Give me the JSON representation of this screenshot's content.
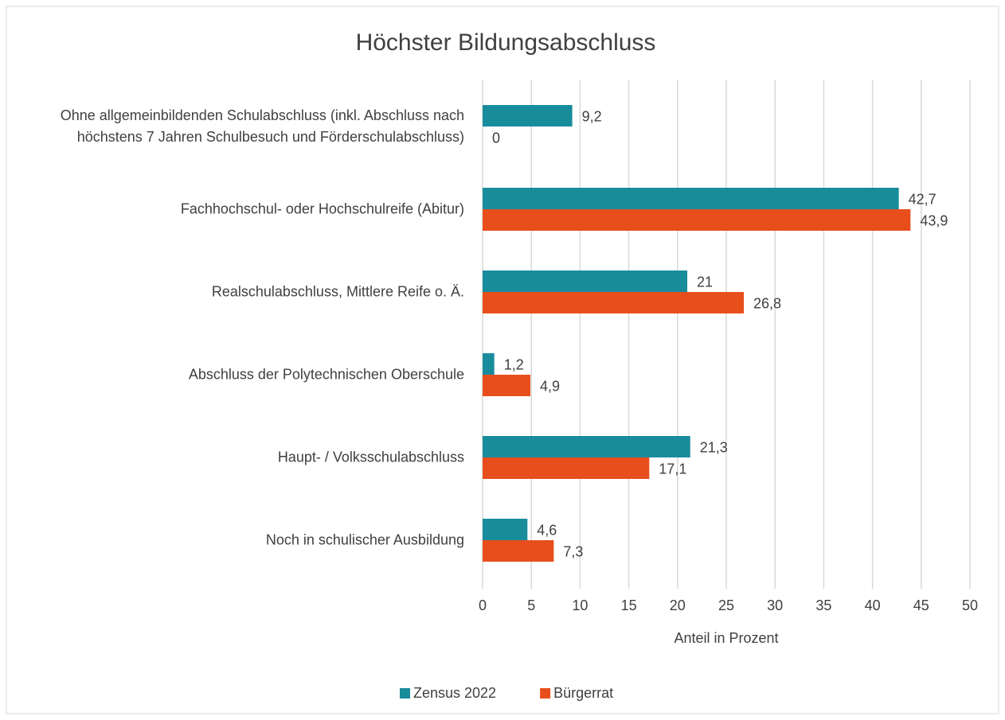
{
  "chart_data": {
    "type": "bar",
    "orientation": "horizontal",
    "title": "Höchster Bildungsabschluss",
    "x_label": "Anteil in Prozent",
    "categories": [
      "Ohne allgemeinbildenden Schulabschluss (inkl. Abschluss nach höchstens 7 Jahren Schulbesuch und Förderschulabschluss)",
      "Fachhochschul- oder Hochschulreife (Abitur)",
      "Realschulabschluss, Mittlere Reife o. Ä.",
      "Abschluss der Polytechnischen Oberschule",
      "Haupt- / Volksschulabschluss",
      "Noch in schulischer Ausbildung"
    ],
    "series": [
      {
        "name": "Zensus 2022",
        "color": "#198c9c",
        "values": [
          9.2,
          42.7,
          21,
          1.2,
          21.3,
          4.6
        ],
        "value_labels": [
          "9,2",
          "42,7",
          "21",
          "1,2",
          "21,3",
          "4,6"
        ]
      },
      {
        "name": "Bürgerrat",
        "color": "#e84e1b",
        "values": [
          0,
          43.9,
          26.8,
          4.9,
          17.1,
          7.3
        ],
        "value_labels": [
          "0",
          "43,9",
          "26,8",
          "4,9",
          "17,1",
          "7,3"
        ]
      }
    ],
    "xlim": [
      0,
      50
    ],
    "xticks": [
      0,
      5,
      10,
      15,
      20,
      25,
      30,
      35,
      40,
      45,
      50
    ],
    "grid": true,
    "legend": "bottom"
  }
}
